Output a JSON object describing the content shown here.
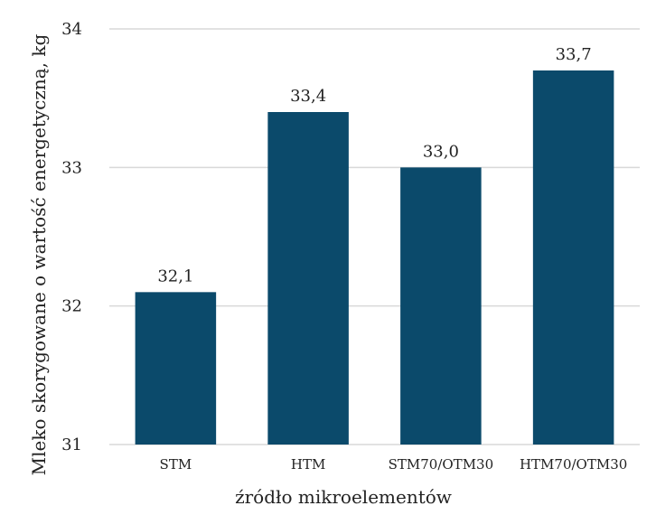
{
  "chart_data": {
    "type": "bar",
    "title": "",
    "xlabel": "źródło mikroelementów",
    "ylabel": "Mleko skorygowane o wartość energetyczną, kg",
    "categories": [
      "STM",
      "HTM",
      "STM70/OTM30",
      "HTM70/OTM30"
    ],
    "values": [
      32.1,
      33.4,
      33.0,
      33.7
    ],
    "value_labels": [
      "32,1",
      "33,4",
      "33,0",
      "33,7"
    ],
    "ylim": [
      31,
      34
    ],
    "yticks": [
      31,
      32,
      33,
      34
    ],
    "ytick_labels": [
      "31",
      "32",
      "33",
      "34"
    ],
    "grid": true,
    "legend": "none",
    "bar_color": "#0b4a6b",
    "grid_color": "#d9d9d9"
  }
}
